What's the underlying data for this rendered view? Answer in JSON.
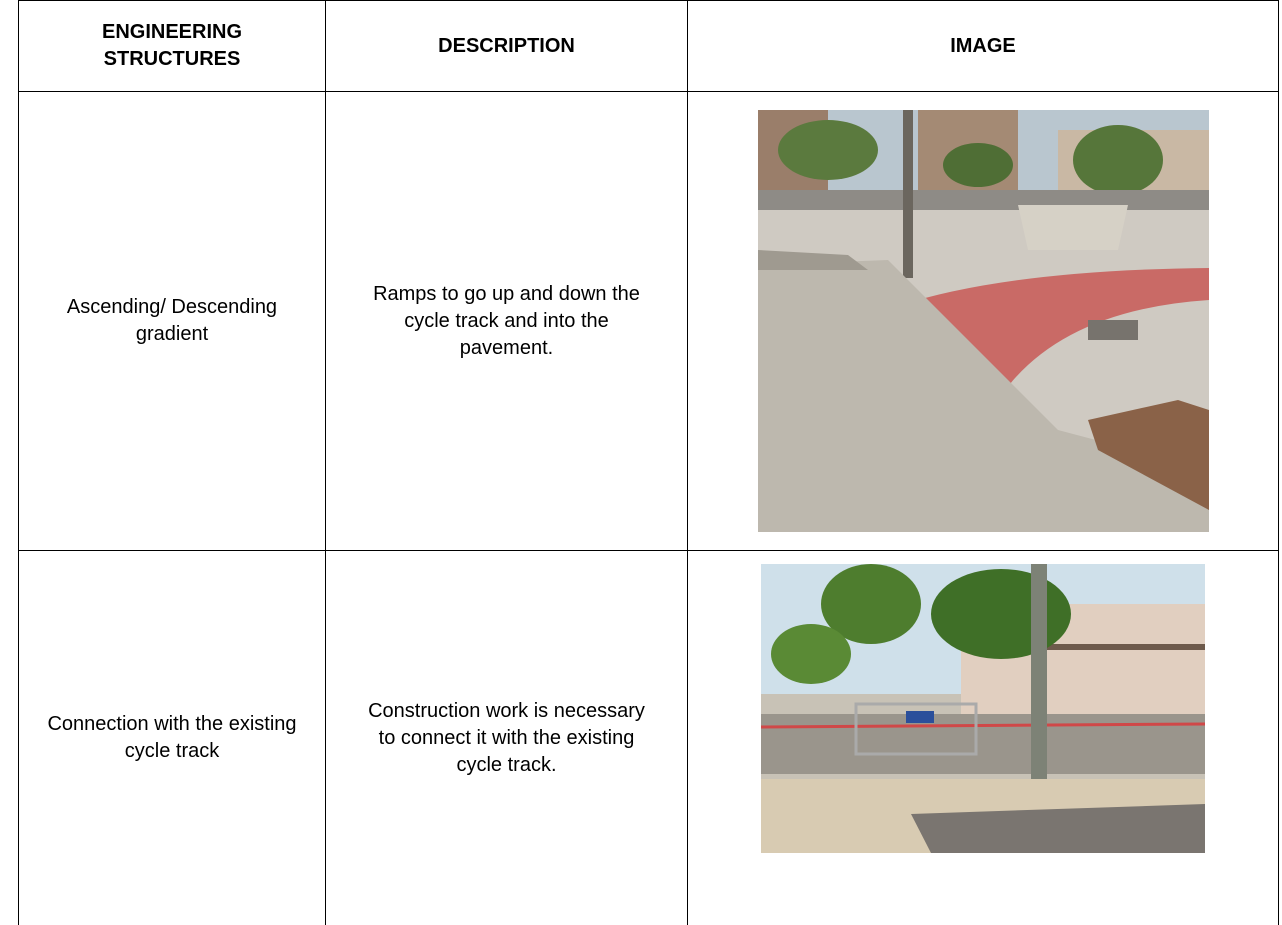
{
  "table": {
    "header": [
      "ENGINEERING STRUCTURES",
      "DESCRIPTION",
      "IMAGE"
    ],
    "rows": [
      [
        "Ascending/ Descending gradient",
        "Ramps to go up and down the cycle track and into the pavement."
      ],
      [
        "Connection with the existing cycle track",
        "Construction work is necessary to connect it with the existing cycle track."
      ]
    ]
  }
}
